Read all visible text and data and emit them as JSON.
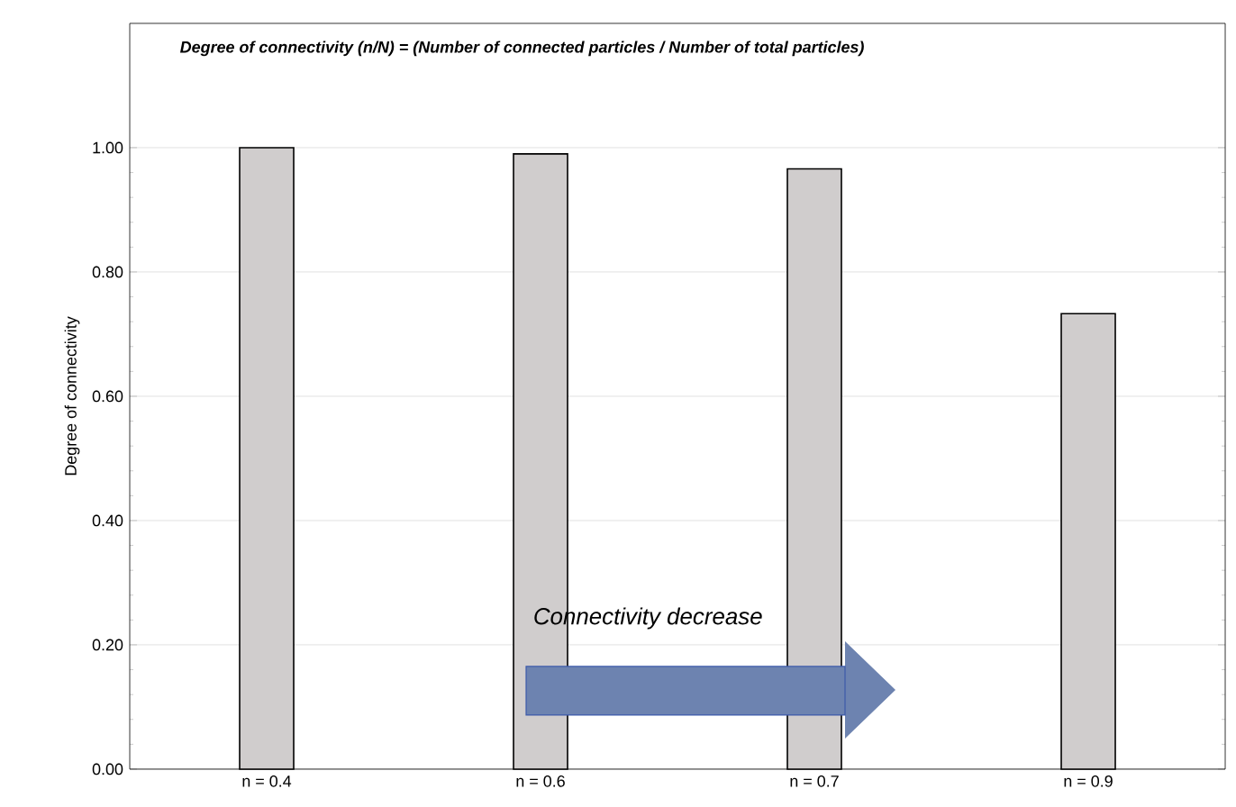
{
  "chart_data": {
    "type": "bar",
    "title": "Degree of connectivity (n/N) = (Number of connected particles / Number of total particles)",
    "ylabel": "Degree of connectivity",
    "categories": [
      "n = 0.4",
      "n = 0.6",
      "n = 0.7",
      "n = 0.9"
    ],
    "values": [
      1.0,
      0.99,
      0.966,
      0.733
    ],
    "color": "#d0cdcd",
    "ylim": [
      0,
      1.2
    ],
    "yticks": [
      {
        "value": 0,
        "label": "0.00"
      },
      {
        "value": 0.2,
        "label": "0.20"
      },
      {
        "value": 0.4,
        "label": "0.40"
      },
      {
        "value": 0.6,
        "label": "0.60"
      },
      {
        "value": 0.8,
        "label": "0.80"
      },
      {
        "value": 1.0,
        "label": "1.00"
      }
    ],
    "grid": "y",
    "annotations": [
      "Connectivity decrease"
    ]
  }
}
